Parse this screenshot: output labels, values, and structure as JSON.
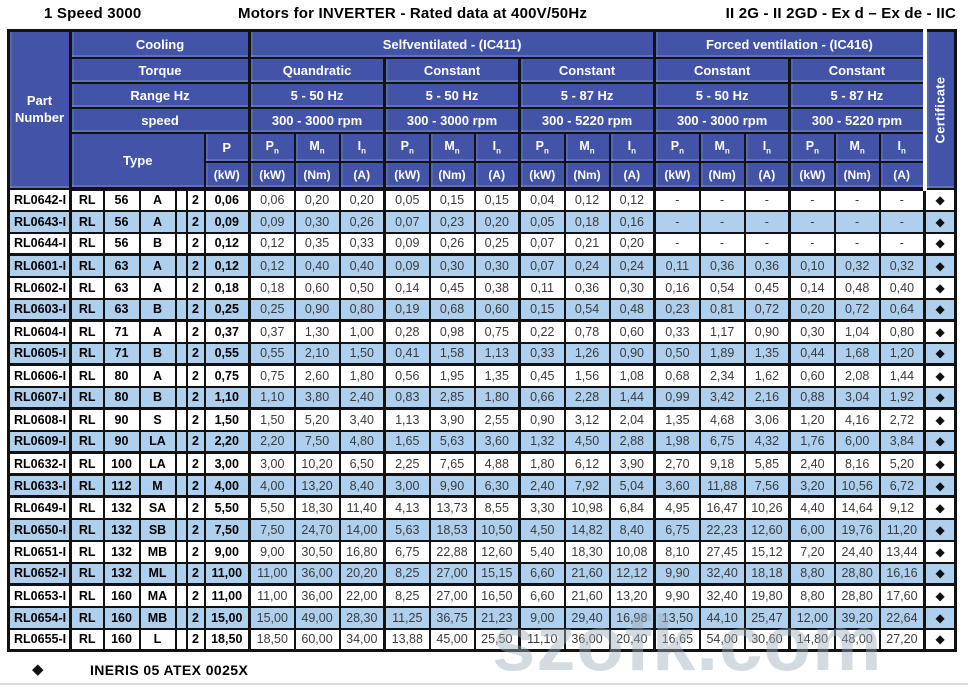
{
  "title": {
    "left": "1 Speed 3000",
    "center": "Motors for INVERTER - Rated data at 400V/50Hz",
    "right": "II 2G - II 2GD - Ex d – Ex de - IIC"
  },
  "header": {
    "part_number": "Part Number",
    "row_labels": {
      "cooling": "Cooling",
      "torque": "Torque",
      "range": "Range Hz",
      "speed": "speed",
      "type": "Type"
    },
    "cooling_groups": [
      {
        "label": "Selfventilated - (IC411)"
      },
      {
        "label": "Forced ventilation - (IC416)"
      }
    ],
    "torque": [
      "Quandratic",
      "Constant",
      "Constant",
      "Constant",
      "Constant"
    ],
    "range_hz": [
      "5 - 50 Hz",
      "5 - 50 Hz",
      "5 - 87 Hz",
      "5 - 50 Hz",
      "5 - 87 Hz"
    ],
    "speed": [
      "300 - 3000 rpm",
      "300 - 3000 rpm",
      "300 - 5220 rpm",
      "300 - 3000 rpm",
      "300 - 5220 rpm"
    ],
    "p_label": "P",
    "p_unit": "(kW)",
    "measures": [
      {
        "name": "rated-power",
        "sym": "P",
        "sub": "n",
        "unit": "(kW)"
      },
      {
        "name": "rated-torque",
        "sym": "M",
        "sub": "n",
        "unit": "(Nm)"
      },
      {
        "name": "rated-current",
        "sym": "I",
        "sub": "n",
        "unit": "(A)"
      }
    ],
    "certificate": "Certificate"
  },
  "cert_symbol": "◆",
  "rows": [
    {
      "part": "RL0642-I",
      "type": [
        "RL",
        "56",
        "A",
        "2"
      ],
      "p": "0,06",
      "values": [
        "0,06",
        "0,20",
        "0,20",
        "0,05",
        "0,15",
        "0,15",
        "0,04",
        "0,12",
        "0,12",
        "-",
        "-",
        "-",
        "-",
        "-",
        "-"
      ]
    },
    {
      "part": "RL0643-I",
      "type": [
        "RL",
        "56",
        "A",
        "2"
      ],
      "p": "0,09",
      "values": [
        "0,09",
        "0,30",
        "0,26",
        "0,07",
        "0,23",
        "0,20",
        "0,05",
        "0,18",
        "0,16",
        "-",
        "-",
        "-",
        "-",
        "-",
        "-"
      ]
    },
    {
      "part": "RL0644-I",
      "type": [
        "RL",
        "56",
        "B",
        "2"
      ],
      "p": "0,12",
      "values": [
        "0,12",
        "0,35",
        "0,33",
        "0,09",
        "0,26",
        "0,25",
        "0,07",
        "0,21",
        "0,20",
        "-",
        "-",
        "-",
        "-",
        "-",
        "-"
      ]
    },
    {
      "part": "RL0601-I",
      "type": [
        "RL",
        "63",
        "A",
        "2"
      ],
      "p": "0,12",
      "values": [
        "0,12",
        "0,40",
        "0,40",
        "0,09",
        "0,30",
        "0,30",
        "0,07",
        "0,24",
        "0,24",
        "0,11",
        "0,36",
        "0,36",
        "0,10",
        "0,32",
        "0,32"
      ]
    },
    {
      "part": "RL0602-I",
      "type": [
        "RL",
        "63",
        "A",
        "2"
      ],
      "p": "0,18",
      "values": [
        "0,18",
        "0,60",
        "0,50",
        "0,14",
        "0,45",
        "0,38",
        "0,11",
        "0,36",
        "0,30",
        "0,16",
        "0,54",
        "0,45",
        "0,14",
        "0,48",
        "0,40"
      ]
    },
    {
      "part": "RL0603-I",
      "type": [
        "RL",
        "63",
        "B",
        "2"
      ],
      "p": "0,25",
      "values": [
        "0,25",
        "0,90",
        "0,80",
        "0,19",
        "0,68",
        "0,60",
        "0,15",
        "0,54",
        "0,48",
        "0,23",
        "0,81",
        "0,72",
        "0,20",
        "0,72",
        "0,64"
      ]
    },
    {
      "part": "RL0604-I",
      "type": [
        "RL",
        "71",
        "A",
        "2"
      ],
      "p": "0,37",
      "values": [
        "0,37",
        "1,30",
        "1,00",
        "0,28",
        "0,98",
        "0,75",
        "0,22",
        "0,78",
        "0,60",
        "0,33",
        "1,17",
        "0,90",
        "0,30",
        "1,04",
        "0,80"
      ]
    },
    {
      "part": "RL0605-I",
      "type": [
        "RL",
        "71",
        "B",
        "2"
      ],
      "p": "0,55",
      "values": [
        "0,55",
        "2,10",
        "1,50",
        "0,41",
        "1,58",
        "1,13",
        "0,33",
        "1,26",
        "0,90",
        "0,50",
        "1,89",
        "1,35",
        "0,44",
        "1,68",
        "1,20"
      ]
    },
    {
      "part": "RL0606-I",
      "type": [
        "RL",
        "80",
        "A",
        "2"
      ],
      "p": "0,75",
      "values": [
        "0,75",
        "2,60",
        "1,80",
        "0,56",
        "1,95",
        "1,35",
        "0,45",
        "1,56",
        "1,08",
        "0,68",
        "2,34",
        "1,62",
        "0,60",
        "2,08",
        "1,44"
      ]
    },
    {
      "part": "RL0607-I",
      "type": [
        "RL",
        "80",
        "B",
        "2"
      ],
      "p": "1,10",
      "values": [
        "1,10",
        "3,80",
        "2,40",
        "0,83",
        "2,85",
        "1,80",
        "0,66",
        "2,28",
        "1,44",
        "0,99",
        "3,42",
        "2,16",
        "0,88",
        "3,04",
        "1,92"
      ]
    },
    {
      "part": "RL0608-I",
      "type": [
        "RL",
        "90",
        "S",
        "2"
      ],
      "p": "1,50",
      "values": [
        "1,50",
        "5,20",
        "3,40",
        "1,13",
        "3,90",
        "2,55",
        "0,90",
        "3,12",
        "2,04",
        "1,35",
        "4,68",
        "3,06",
        "1,20",
        "4,16",
        "2,72"
      ]
    },
    {
      "part": "RL0609-I",
      "type": [
        "RL",
        "90",
        "LA",
        "2"
      ],
      "p": "2,20",
      "values": [
        "2,20",
        "7,50",
        "4,80",
        "1,65",
        "5,63",
        "3,60",
        "1,32",
        "4,50",
        "2,88",
        "1,98",
        "6,75",
        "4,32",
        "1,76",
        "6,00",
        "3,84"
      ]
    },
    {
      "part": "RL0632-I",
      "type": [
        "RL",
        "100",
        "LA",
        "2"
      ],
      "p": "3,00",
      "values": [
        "3,00",
        "10,20",
        "6,50",
        "2,25",
        "7,65",
        "4,88",
        "1,80",
        "6,12",
        "3,90",
        "2,70",
        "9,18",
        "5,85",
        "2,40",
        "8,16",
        "5,20"
      ]
    },
    {
      "part": "RL0633-I",
      "type": [
        "RL",
        "112",
        "M",
        "2"
      ],
      "p": "4,00",
      "values": [
        "4,00",
        "13,20",
        "8,40",
        "3,00",
        "9,90",
        "6,30",
        "2,40",
        "7,92",
        "5,04",
        "3,60",
        "11,88",
        "7,56",
        "3,20",
        "10,56",
        "6,72"
      ]
    },
    {
      "part": "RL0649-I",
      "type": [
        "RL",
        "132",
        "SA",
        "2"
      ],
      "p": "5,50",
      "values": [
        "5,50",
        "18,30",
        "11,40",
        "4,13",
        "13,73",
        "8,55",
        "3,30",
        "10,98",
        "6,84",
        "4,95",
        "16,47",
        "10,26",
        "4,40",
        "14,64",
        "9,12"
      ]
    },
    {
      "part": "RL0650-I",
      "type": [
        "RL",
        "132",
        "SB",
        "2"
      ],
      "p": "7,50",
      "values": [
        "7,50",
        "24,70",
        "14,00",
        "5,63",
        "18,53",
        "10,50",
        "4,50",
        "14,82",
        "8,40",
        "6,75",
        "22,23",
        "12,60",
        "6,00",
        "19,76",
        "11,20"
      ]
    },
    {
      "part": "RL0651-I",
      "type": [
        "RL",
        "132",
        "MB",
        "2"
      ],
      "p": "9,00",
      "values": [
        "9,00",
        "30,50",
        "16,80",
        "6,75",
        "22,88",
        "12,60",
        "5,40",
        "18,30",
        "10,08",
        "8,10",
        "27,45",
        "15,12",
        "7,20",
        "24,40",
        "13,44"
      ]
    },
    {
      "part": "RL0652-I",
      "type": [
        "RL",
        "132",
        "ML",
        "2"
      ],
      "p": "11,00",
      "values": [
        "11,00",
        "36,00",
        "20,20",
        "8,25",
        "27,00",
        "15,15",
        "6,60",
        "21,60",
        "12,12",
        "9,90",
        "32,40",
        "18,18",
        "8,80",
        "28,80",
        "16,16"
      ]
    },
    {
      "part": "RL0653-I",
      "type": [
        "RL",
        "160",
        "MA",
        "2"
      ],
      "p": "11,00",
      "values": [
        "11,00",
        "36,00",
        "22,00",
        "8,25",
        "27,00",
        "16,50",
        "6,60",
        "21,60",
        "13,20",
        "9,90",
        "32,40",
        "19,80",
        "8,80",
        "28,80",
        "17,60"
      ]
    },
    {
      "part": "RL0654-I",
      "type": [
        "RL",
        "160",
        "MB",
        "2"
      ],
      "p": "15,00",
      "values": [
        "15,00",
        "49,00",
        "28,30",
        "11,25",
        "36,75",
        "21,23",
        "9,00",
        "29,40",
        "16,98",
        "13,50",
        "44,10",
        "25,47",
        "12,00",
        "39,20",
        "22,64"
      ]
    },
    {
      "part": "RL0655-I",
      "type": [
        "RL",
        "160",
        "L",
        "2"
      ],
      "p": "18,50",
      "values": [
        "18,50",
        "60,00",
        "34,00",
        "13,88",
        "45,00",
        "25,50",
        "11,10",
        "36,00",
        "20,40",
        "16,65",
        "54,00",
        "30,60",
        "14,80",
        "48,00",
        "27,20"
      ]
    }
  ],
  "footer": {
    "symbol": "◆",
    "text": "INERIS 05 ATEX 0025X"
  },
  "watermark": {
    "text": "szofk.com"
  },
  "colors": {
    "header_blue": "#4354a8",
    "row_alt_blue": "#aed0ee",
    "border_black": "#121212",
    "certificate_diamond": "#111111",
    "watermark_gray": "#9eacba"
  }
}
